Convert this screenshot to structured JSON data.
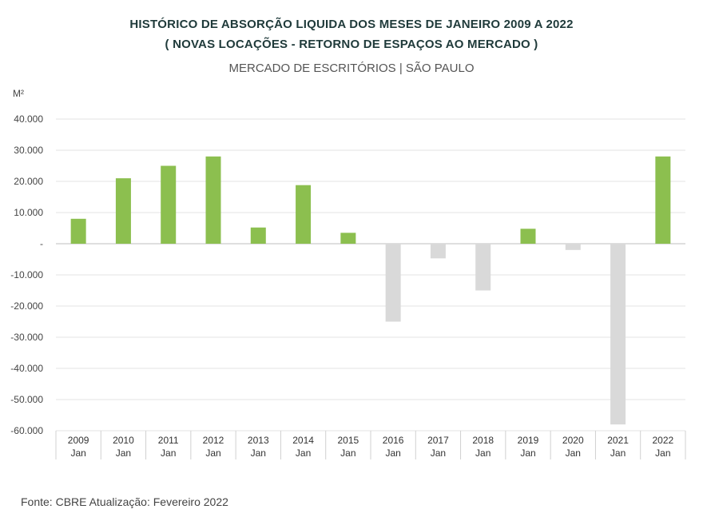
{
  "header": {
    "title_line1": "HISTÓRICO DE ABSORÇÃO LIQUIDA DOS MESES DE JANEIRO 2009 A 2022",
    "title_line2": "( NOVAS LOCAÇÕES - RETORNO DE ESPAÇOS AO MERCADO )",
    "subtitle": "MERCADO DE ESCRITÓRIOS | SÃO PAULO",
    "unit": "M²"
  },
  "footer": {
    "source": "Fonte: CBRE Atualização: Fevereiro 2022"
  },
  "chart_data": {
    "type": "bar",
    "title": "HISTÓRICO DE ABSORÇÃO LIQUIDA DOS MESES DE JANEIRO 2009 A 2022",
    "subtitle": "( NOVAS LOCAÇÕES - RETORNO DE ESPAÇOS AO MERCADO )",
    "ylabel": "M²",
    "ylim": [
      -60000,
      40000
    ],
    "y_ticks": [
      40000,
      30000,
      20000,
      10000,
      0,
      -10000,
      -20000,
      -30000,
      -40000,
      -50000,
      -60000
    ],
    "y_tick_labels": [
      "40.000",
      "30.000",
      "20.000",
      "10.000",
      "-",
      "-10.000",
      "-20.000",
      "-30.000",
      "-40.000",
      "-50.000",
      "-60.000"
    ],
    "categories": [
      "2009",
      "2010",
      "2011",
      "2012",
      "2013",
      "2014",
      "2015",
      "2016",
      "2017",
      "2018",
      "2019",
      "2020",
      "2021",
      "2022"
    ],
    "category_sublabel": "Jan",
    "values": [
      8000,
      21000,
      25000,
      28000,
      5200,
      18800,
      3500,
      -25000,
      -4700,
      -15000,
      4800,
      -2000,
      -58000,
      28000
    ],
    "colors": {
      "positive": "#8cbf4f",
      "negative": "#d9d9d9"
    },
    "grid": true,
    "legend": "none"
  }
}
